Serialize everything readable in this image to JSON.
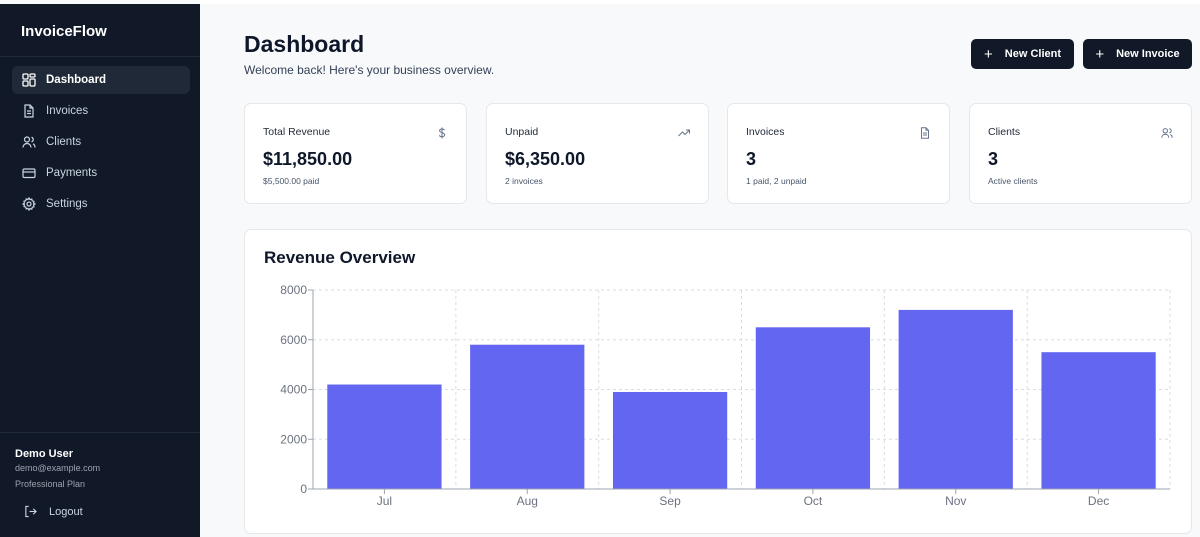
{
  "sidebar": {
    "brand": "InvoiceFlow",
    "items": [
      {
        "label": "Dashboard",
        "icon": "dashboard-icon",
        "active": true
      },
      {
        "label": "Invoices",
        "icon": "file-icon",
        "active": false
      },
      {
        "label": "Clients",
        "icon": "users-icon",
        "active": false
      },
      {
        "label": "Payments",
        "icon": "credit-card-icon",
        "active": false
      },
      {
        "label": "Settings",
        "icon": "gear-icon",
        "active": false
      }
    ],
    "user": {
      "name": "Demo User",
      "email": "demo@example.com",
      "plan": "Professional Plan"
    },
    "logout_label": "Logout"
  },
  "header": {
    "title": "Dashboard",
    "subtitle": "Welcome back! Here's your business overview.",
    "new_client_label": "New Client",
    "new_invoice_label": "New Invoice"
  },
  "stats": [
    {
      "label": "Total Revenue",
      "value": "$11,850.00",
      "sub": "$5,500.00 paid",
      "icon": "dollar-icon"
    },
    {
      "label": "Unpaid",
      "value": "$6,350.00",
      "sub": "2 invoices",
      "icon": "trending-up-icon"
    },
    {
      "label": "Invoices",
      "value": "3",
      "sub": "1 paid, 2 unpaid",
      "icon": "file-icon"
    },
    {
      "label": "Clients",
      "value": "3",
      "sub": "Active clients",
      "icon": "users-icon"
    }
  ],
  "revenue_card": {
    "title": "Revenue Overview"
  },
  "chart_data": {
    "type": "bar",
    "title": "Revenue Overview",
    "categories": [
      "Jul",
      "Aug",
      "Sep",
      "Oct",
      "Nov",
      "Dec"
    ],
    "values": [
      4200,
      5800,
      3900,
      6500,
      7200,
      5500
    ],
    "ylim": [
      0,
      8000
    ],
    "yticks": [
      0,
      2000,
      4000,
      6000,
      8000
    ],
    "grid": true,
    "bar_color": "#6366f1"
  },
  "colors": {
    "sidebar_bg": "#111827",
    "accent": "#6366f1"
  }
}
